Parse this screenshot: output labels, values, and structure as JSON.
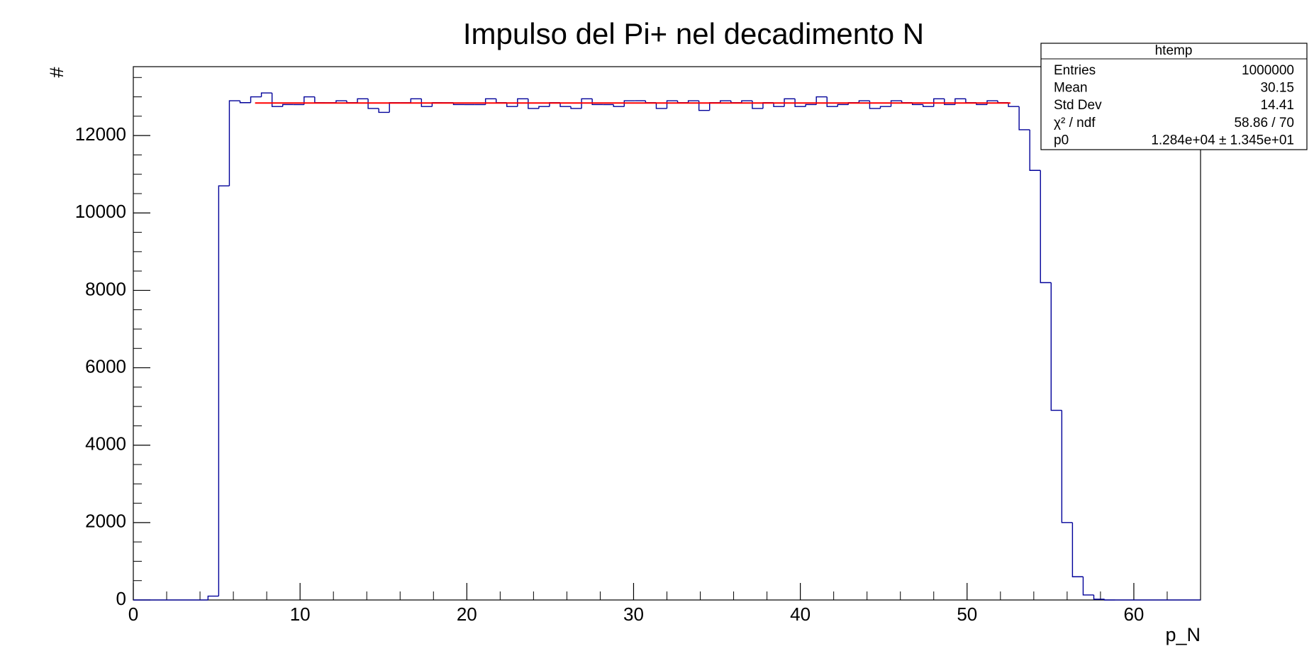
{
  "chart_data": {
    "type": "histogram",
    "title": "Impulso del Pi+ nel decadimento N",
    "xlabel": "p_N",
    "ylabel": "#",
    "color": "#000099",
    "xlim": [
      0,
      64
    ],
    "ylim": [
      0,
      13780
    ],
    "xticks": [
      0,
      10,
      20,
      30,
      40,
      50,
      60
    ],
    "yticks": [
      0,
      2000,
      4000,
      6000,
      8000,
      10000,
      12000
    ],
    "bins": [
      0,
      0.64,
      1.28,
      1.92,
      2.56,
      3.2,
      3.84,
      4.48,
      5.12,
      5.76,
      6.4,
      7.04,
      7.68,
      8.32,
      8.96,
      9.6,
      10.24,
      10.88,
      11.52,
      12.16,
      12.8,
      13.44,
      14.08,
      14.72,
      15.36,
      16,
      16.64,
      17.28,
      17.92,
      18.56,
      19.2,
      19.84,
      20.48,
      21.12,
      21.76,
      22.4,
      23.04,
      23.68,
      24.32,
      24.96,
      25.6,
      26.24,
      26.88,
      27.52,
      28.16,
      28.8,
      29.44,
      30.08,
      30.72,
      31.36,
      32,
      32.64,
      33.28,
      33.92,
      34.56,
      35.2,
      35.84,
      36.48,
      37.12,
      37.76,
      38.4,
      39.04,
      39.68,
      40.32,
      40.96,
      41.6,
      42.24,
      42.88,
      43.52,
      44.16,
      44.8,
      45.44,
      46.08,
      46.72,
      47.36,
      48,
      48.64,
      49.28,
      49.92,
      50.56,
      51.2,
      51.84,
      52.48,
      53.12,
      53.76,
      54.4,
      55.04,
      55.68,
      56.32,
      56.96,
      57.6,
      58.24,
      58.88,
      59.52,
      60.16,
      60.8,
      61.44,
      62.08,
      62.72,
      63.36,
      64
    ],
    "counts": [
      0,
      0,
      0,
      0,
      0,
      0,
      0,
      100,
      10700,
      12900,
      12850,
      13000,
      13100,
      12750,
      12800,
      12800,
      13000,
      12850,
      12850,
      12900,
      12850,
      12950,
      12700,
      12600,
      12850,
      12850,
      12950,
      12750,
      12850,
      12850,
      12800,
      12800,
      12800,
      12950,
      12850,
      12750,
      12950,
      12700,
      12750,
      12850,
      12750,
      12700,
      12950,
      12800,
      12800,
      12750,
      12900,
      12900,
      12850,
      12700,
      12900,
      12850,
      12900,
      12650,
      12850,
      12900,
      12850,
      12900,
      12700,
      12850,
      12750,
      12950,
      12750,
      12800,
      13000,
      12750,
      12800,
      12850,
      12900,
      12700,
      12750,
      12900,
      12850,
      12800,
      12750,
      12950,
      12800,
      12950,
      12850,
      12800,
      12900,
      12850,
      12750,
      12150,
      11100,
      8200,
      4900,
      2000,
      600,
      130,
      20,
      0,
      0,
      0,
      0,
      0,
      0,
      0,
      0,
      0
    ],
    "fit": {
      "p0": 12840,
      "xlim": [
        7.3,
        52.6
      ],
      "color": "#ff0000"
    },
    "stats": {
      "title": "htemp",
      "rows": [
        {
          "label": "Entries",
          "value": "1000000"
        },
        {
          "label": "Mean",
          "value": "30.15"
        },
        {
          "label": "Std Dev",
          "value": "14.41"
        },
        {
          "label": "χ² / ndf",
          "value": "58.86 / 70"
        },
        {
          "label": "p0",
          "value": "1.284e+04 ± 1.345e+01"
        }
      ]
    }
  }
}
